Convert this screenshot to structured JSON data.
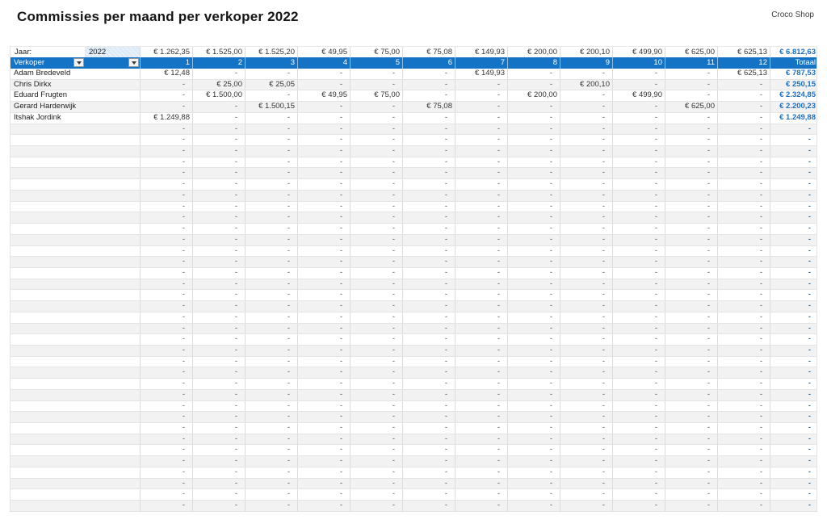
{
  "page": {
    "title": "Commissies per maand per verkoper 2022",
    "company": "Croco Shop"
  },
  "controls": {
    "jaar_label": "Jaar:",
    "jaar_value": "2022"
  },
  "colors": {
    "header_accent": "#1473c4",
    "total_text_blue": "#1f6fbf",
    "year_cell_fill": "#dcebf7",
    "row_stripe": "#f2f2f2"
  },
  "icons": {
    "filter_dropdown": "caret-down-icon"
  },
  "table": {
    "header": {
      "verkoper_label": "Verkoper",
      "months": [
        "1",
        "2",
        "3",
        "4",
        "5",
        "6",
        "7",
        "8",
        "9",
        "10",
        "11",
        "12"
      ],
      "total_label": "Totaal"
    },
    "month_totals": [
      "€ 1.262,35",
      "€ 1.525,00",
      "€ 1.525,20",
      "€ 49,95",
      "€ 75,00",
      "€ 75,08",
      "€ 149,93",
      "€ 200,00",
      "€ 200,10",
      "€ 499,90",
      "€ 625,00",
      "€ 625,13"
    ],
    "grand_total": "€ 6.812,63",
    "rows": [
      {
        "name": "Adam Bredeveld",
        "values": [
          "€ 12,48",
          "-",
          "-",
          "-",
          "-",
          "-",
          "€ 149,93",
          "-",
          "-",
          "-",
          "-",
          "€ 625,13"
        ],
        "total": "€ 787,53"
      },
      {
        "name": "Chris Dirkx",
        "values": [
          "-",
          "€ 25,00",
          "€ 25,05",
          "-",
          "-",
          "-",
          "-",
          "-",
          "€ 200,10",
          "-",
          "-",
          "-"
        ],
        "total": "€ 250,15"
      },
      {
        "name": "Eduard Frugten",
        "values": [
          "-",
          "€ 1.500,00",
          "-",
          "€ 49,95",
          "€ 75,00",
          "-",
          "-",
          "€ 200,00",
          "-",
          "€ 499,90",
          "-",
          "-"
        ],
        "total": "€ 2.324,85"
      },
      {
        "name": "Gerard Harderwijk",
        "values": [
          "-",
          "-",
          "€ 1.500,15",
          "-",
          "-",
          "€ 75,08",
          "-",
          "-",
          "-",
          "-",
          "€ 625,00",
          "-"
        ],
        "total": "€ 2.200,23"
      },
      {
        "name": "Itshak Jordink",
        "values": [
          "€ 1.249,88",
          "-",
          "-",
          "-",
          "-",
          "-",
          "-",
          "-",
          "-",
          "-",
          "-",
          "-"
        ],
        "total": "€ 1.249,88"
      }
    ],
    "empty_cell": "-",
    "empty_row_count": 35
  }
}
